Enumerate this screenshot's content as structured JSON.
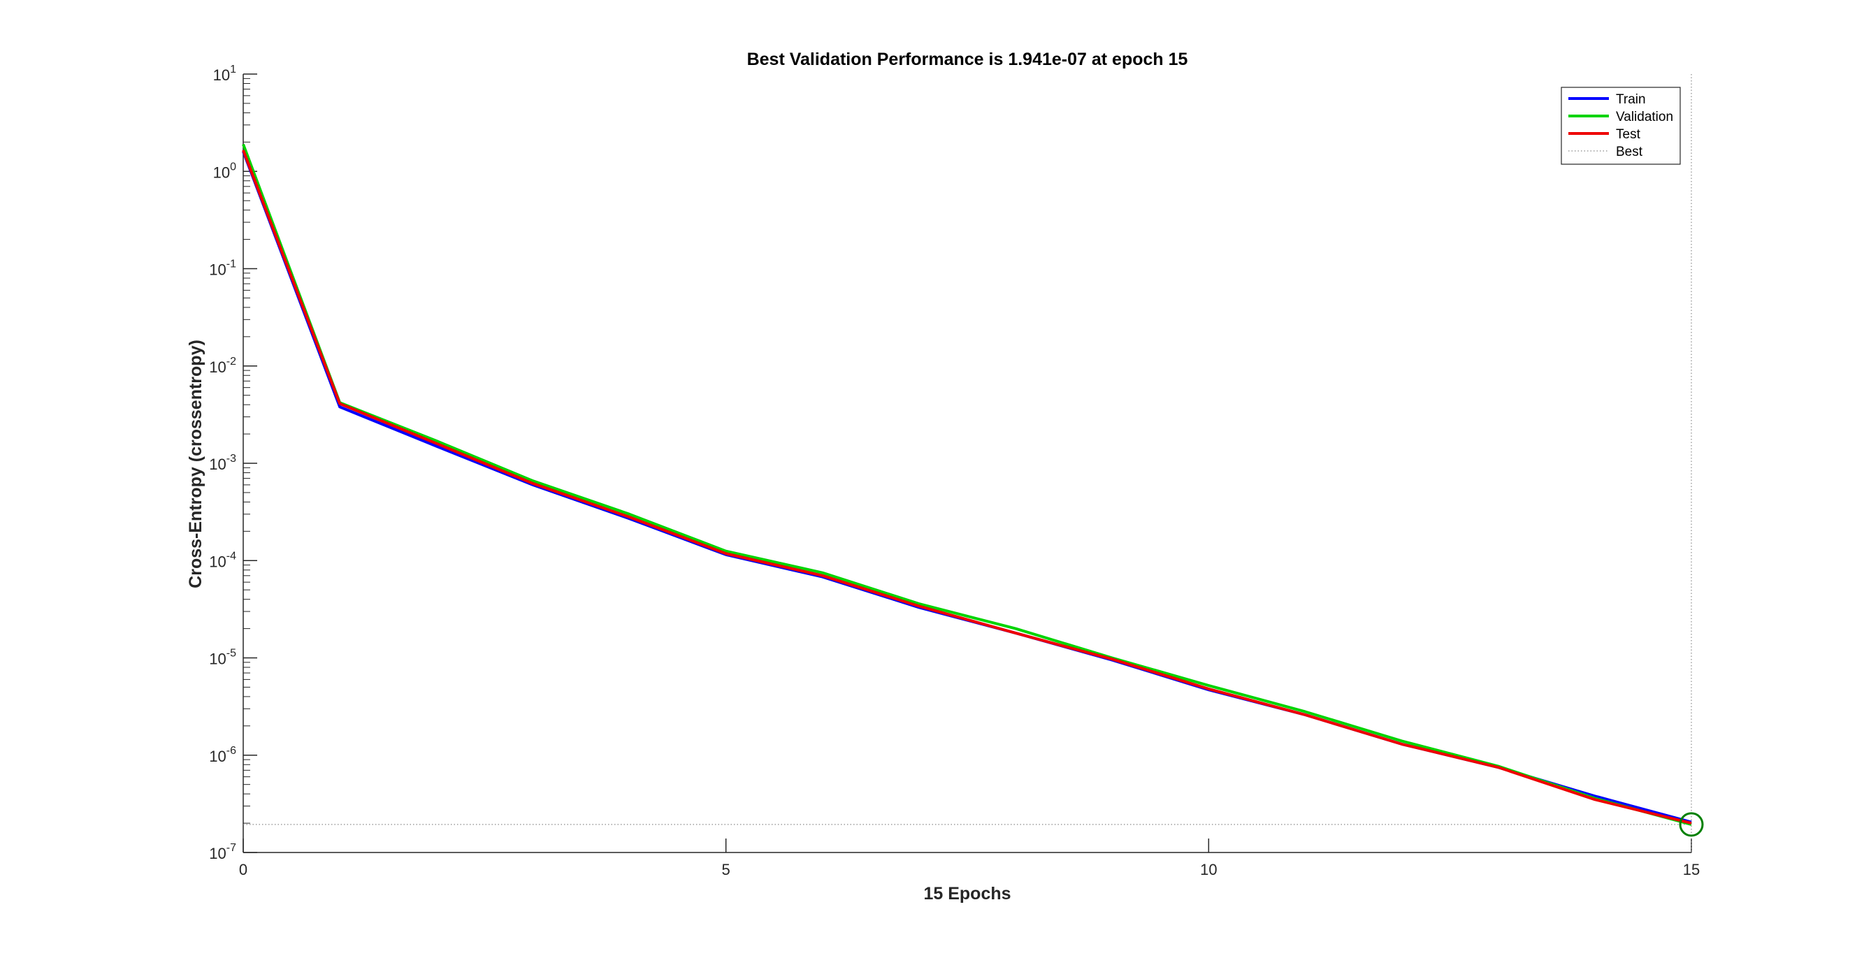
{
  "chart_data": {
    "type": "line",
    "title": "Best Validation Performance is 1.941e-07 at epoch 15",
    "xlabel": "15 Epochs",
    "ylabel": "Cross-Entropy  (crossentropy)",
    "xscale": "linear",
    "yscale": "log",
    "xlim": [
      0,
      15
    ],
    "ylim": [
      1e-07,
      10
    ],
    "xticks": [
      "0",
      "5",
      "10",
      "15"
    ],
    "yticks": [
      "10^1",
      "10^0",
      "10^-1",
      "10^-2",
      "10^-3",
      "10^-4",
      "10^-5",
      "10^-6",
      "10^-7"
    ],
    "grid": false,
    "legend_position": "top-right",
    "x": [
      0,
      1,
      2,
      3,
      4,
      5,
      6,
      7,
      8,
      9,
      10,
      11,
      12,
      13,
      14,
      15
    ],
    "series": [
      {
        "name": "Train",
        "color": "#0000ff",
        "values": [
          1.6,
          0.0038,
          0.0015,
          0.0006,
          0.00027,
          0.000115,
          6.8e-05,
          3.3e-05,
          1.8e-05,
          9.5e-06,
          4.7e-06,
          2.6e-06,
          1.3e-06,
          7.5e-07,
          3.8e-07,
          2.05e-07
        ]
      },
      {
        "name": "Validation",
        "color": "#00d400",
        "values": [
          1.9,
          0.0042,
          0.0017,
          0.00066,
          0.0003,
          0.000125,
          7.5e-05,
          3.6e-05,
          2e-05,
          1e-05,
          5.2e-06,
          2.8e-06,
          1.4e-06,
          7.7e-07,
          3.6e-07,
          1.94e-07
        ]
      },
      {
        "name": "Test",
        "color": "#ee0000",
        "values": [
          1.65,
          0.0041,
          0.0016,
          0.00062,
          0.00028,
          0.000118,
          7e-05,
          3.4e-05,
          1.8e-05,
          9.7e-06,
          4.8e-06,
          2.6e-06,
          1.3e-06,
          7.5e-07,
          3.5e-07,
          2e-07
        ]
      },
      {
        "name": "Best",
        "color": "#888888",
        "style": "dotted"
      }
    ],
    "best": {
      "epoch": 15,
      "value": 1.941e-07,
      "marker_color": "#008000"
    }
  }
}
